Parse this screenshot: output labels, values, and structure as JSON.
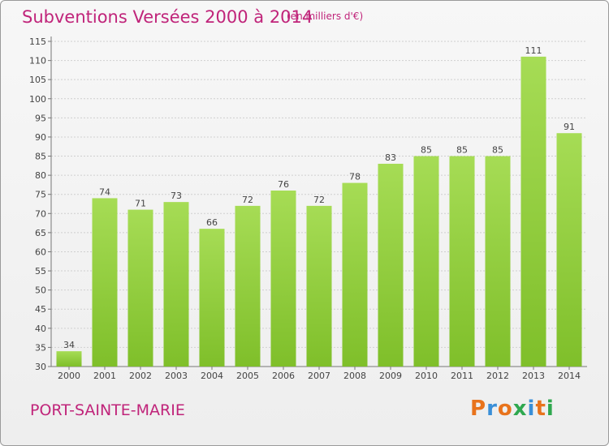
{
  "chart_data": {
    "type": "bar",
    "title": "Subventions Versées 2000 à 2014",
    "subtitle": "(en milliers d'€)",
    "categories": [
      "2000",
      "2001",
      "2002",
      "2003",
      "2004",
      "2005",
      "2006",
      "2007",
      "2008",
      "2009",
      "2010",
      "2011",
      "2012",
      "2013",
      "2014"
    ],
    "values": [
      34,
      74,
      71,
      73,
      66,
      72,
      76,
      72,
      78,
      83,
      85,
      85,
      85,
      111,
      91
    ],
    "ylim": [
      30,
      115
    ],
    "yticks": [
      30,
      35,
      40,
      45,
      50,
      55,
      60,
      65,
      70,
      75,
      80,
      85,
      90,
      95,
      100,
      105,
      110,
      115
    ],
    "grid": true,
    "bar_color": "#7fbf2a",
    "bar_color_light": "#a6dc55"
  },
  "footer": {
    "city": "PORT-SAINTE-MARIE",
    "logo_text": "Proxiti"
  },
  "colors": {
    "accent": "#c0247a",
    "logo": [
      "#e8731c",
      "#3a8fd8",
      "#e8731c",
      "#2fa84f",
      "#3a8fd8",
      "#e8731c",
      "#2fa84f"
    ]
  }
}
